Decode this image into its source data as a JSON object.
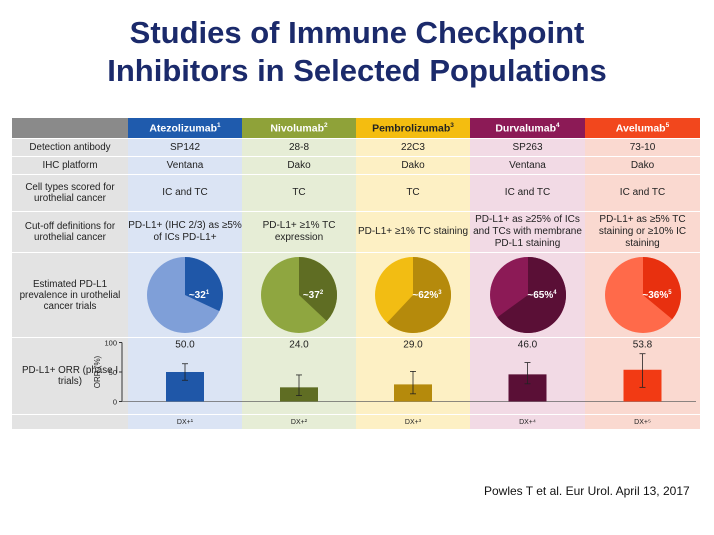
{
  "title": {
    "line1": "Studies of Immune Checkpoint",
    "line2": "Inhibitors in Selected Populations"
  },
  "table": {
    "drugs": [
      {
        "name": "Atezolizumab",
        "sup": "1",
        "color": "#1f5bad"
      },
      {
        "name": "Nivolumab",
        "sup": "2",
        "color": "#8fa239"
      },
      {
        "name": "Pembrolizumab",
        "sup": "3",
        "color": "#f4bd10"
      },
      {
        "name": "Durvalumab",
        "sup": "4",
        "color": "#8c1a56"
      },
      {
        "name": "Avelumab",
        "sup": "5",
        "color": "#f2471d"
      }
    ],
    "rows": {
      "antibody": {
        "label": "Detection antibody",
        "values": [
          "SP142",
          "28-8",
          "22C3",
          "SP263",
          "73-10"
        ]
      },
      "platform": {
        "label": "IHC platform",
        "values": [
          "Ventana",
          "Dako",
          "Dako",
          "Ventana",
          "Dako"
        ]
      },
      "cells": {
        "label": "Cell types scored for urothelial cancer",
        "values": [
          "IC and TC",
          "TC",
          "TC",
          "IC and TC",
          "IC and TC"
        ]
      },
      "cutoff": {
        "label": "Cut-off definitions for urothelial cancer",
        "values": [
          "PD-L1+ (IHC 2/3) as ≥5% of ICs PD-L1+",
          "PD-L1+ ≥1% TC expression",
          "PD-L1+ ≥1% TC staining",
          "PD-L1+ as ≥25% of ICs and TCs with membrane PD-L1 staining",
          "PD-L1+ as ≥5% TC staining or ≥10% IC staining"
        ]
      },
      "prevalence": {
        "label": "Estimated PD-L1 prevalence in urothelial cancer trials",
        "texts": [
          "~32",
          "~37",
          "~62%",
          "~65%",
          "~36%"
        ],
        "sups": [
          "1",
          "2",
          "3",
          "4",
          "5"
        ],
        "percent": [
          32,
          37,
          62,
          65,
          36
        ],
        "light": [
          "#7f9fd8",
          "#8fa640",
          "#f2bd13",
          "#8c1a56",
          "#ff6a4a"
        ],
        "dark": [
          "#1f57a8",
          "#5f6d23",
          "#b58a0c",
          "#5a0f36",
          "#e8300f"
        ]
      },
      "orr": {
        "label": "PD-L1+ ORR (phase I trials)",
        "values": [
          "50.0",
          "24.0",
          "29.0",
          "46.0",
          "53.8"
        ],
        "axis_label": "ORR (%)",
        "ticks": [
          "100",
          "50",
          "0"
        ],
        "xlabels": [
          "DX+¹",
          "DX+²",
          "DX+³",
          "DX+⁴",
          "DX+⁵"
        ]
      }
    }
  },
  "chart_data": {
    "type": "bar",
    "categories": [
      "DX+1",
      "DX+2",
      "DX+3",
      "DX+4",
      "DX+5"
    ],
    "values": [
      50.0,
      24.0,
      29.0,
      46.0,
      53.8
    ],
    "error_low": [
      36,
      10,
      13,
      30,
      24
    ],
    "error_high": [
      64,
      45,
      51,
      66,
      81
    ],
    "colors": [
      "#1f57a8",
      "#5f6d23",
      "#b58a0c",
      "#5a0f36",
      "#f23a14"
    ],
    "ylabel": "ORR (%)",
    "ylim": [
      0,
      100
    ]
  },
  "footer": "Powles T et al. Eur Urol. April 13, 2017"
}
